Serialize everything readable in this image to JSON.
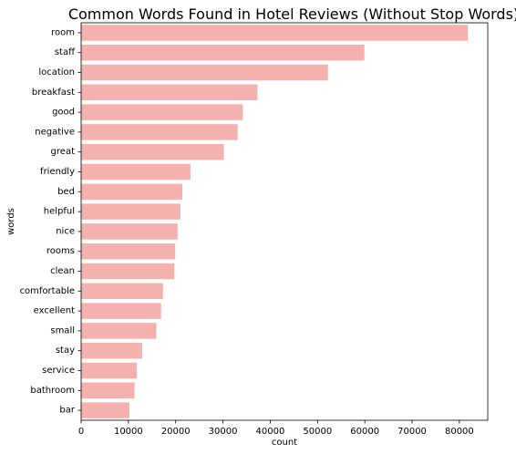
{
  "chart_data": {
    "type": "bar",
    "orientation": "horizontal",
    "title": "Common Words Found in Hotel Reviews (Without Stop Words)",
    "xlabel": "count",
    "ylabel": "words",
    "xlim": [
      0,
      86000
    ],
    "xticks": [
      0,
      10000,
      20000,
      30000,
      40000,
      50000,
      60000,
      70000,
      80000
    ],
    "xtick_labels": [
      "0",
      "10000",
      "20000",
      "30000",
      "40000",
      "50000",
      "60000",
      "70000",
      "80000"
    ],
    "bar_color": "#f4b1ad",
    "grid": false,
    "categories": [
      "room",
      "staff",
      "location",
      "breakfast",
      "good",
      "negative",
      "great",
      "friendly",
      "bed",
      "helpful",
      "nice",
      "rooms",
      "clean",
      "comfortable",
      "excellent",
      "small",
      "stay",
      "service",
      "bathroom",
      "bar"
    ],
    "values": [
      81800,
      59900,
      52200,
      37300,
      34200,
      33100,
      30200,
      23100,
      21400,
      21000,
      20400,
      19900,
      19700,
      17300,
      16900,
      15900,
      12900,
      11800,
      11300,
      10200
    ]
  }
}
